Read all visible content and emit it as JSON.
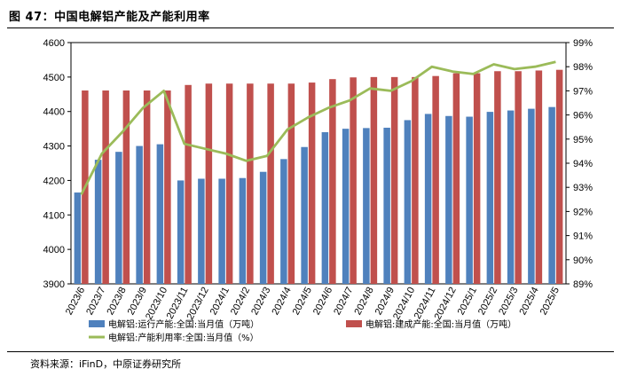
{
  "figure_title": "图 47：中国电解铝产能及产能利用率",
  "source": "资料来源：iFinD，中原证券研究所",
  "colors": {
    "operating": "#4f81bd",
    "built": "#c0504d",
    "utilization": "#9bbb59"
  },
  "chart_data": {
    "type": "bar",
    "categories": [
      "2023/6",
      "2023/7",
      "2023/8",
      "2023/9",
      "2023/10",
      "2023/11",
      "2023/12",
      "2024/1",
      "2024/2",
      "2024/3",
      "2024/4",
      "2024/5",
      "2024/6",
      "2024/7",
      "2024/8",
      "2024/9",
      "2024/10",
      "2024/11",
      "2024/12",
      "2025/1",
      "2025/2",
      "2025/3",
      "2025/4",
      "2025/5"
    ],
    "series": [
      {
        "name": "电解铝:运行产能:全国:当月值（万吨）",
        "type": "bar",
        "axis": "left",
        "values": [
          4165,
          4260,
          4283,
          4300,
          4305,
          4200,
          4205,
          4205,
          4207,
          4225,
          4262,
          4297,
          4340,
          4350,
          4352,
          4353,
          4375,
          4393,
          4387,
          4385,
          4399,
          4403,
          4408,
          4413
        ]
      },
      {
        "name": "电解铝:建成产能:全国:当月值（万吨）",
        "type": "bar",
        "axis": "left",
        "values": [
          4461,
          4461,
          4461,
          4461,
          4461,
          4477,
          4481,
          4481,
          4481,
          4481,
          4481,
          4484,
          4494,
          4499,
          4500,
          4500,
          4500,
          4503,
          4511,
          4511,
          4517,
          4517,
          4519,
          4521
        ]
      },
      {
        "name": "电解铝:产能利用率:全国:当月值（%）",
        "type": "line",
        "axis": "right",
        "values": [
          92.7,
          94.4,
          95.3,
          96.3,
          97.0,
          94.8,
          94.6,
          94.4,
          94.1,
          94.3,
          95.4,
          95.9,
          96.3,
          96.6,
          97.1,
          97.0,
          97.4,
          98.0,
          97.8,
          97.7,
          98.1,
          97.9,
          98.0,
          98.2
        ]
      }
    ],
    "y_left": {
      "min": 3900,
      "max": 4600,
      "step": 100
    },
    "y_right": {
      "min": 89,
      "max": 99,
      "step": 1,
      "unit": "%"
    },
    "grid": false,
    "legend_position": "bottom"
  }
}
